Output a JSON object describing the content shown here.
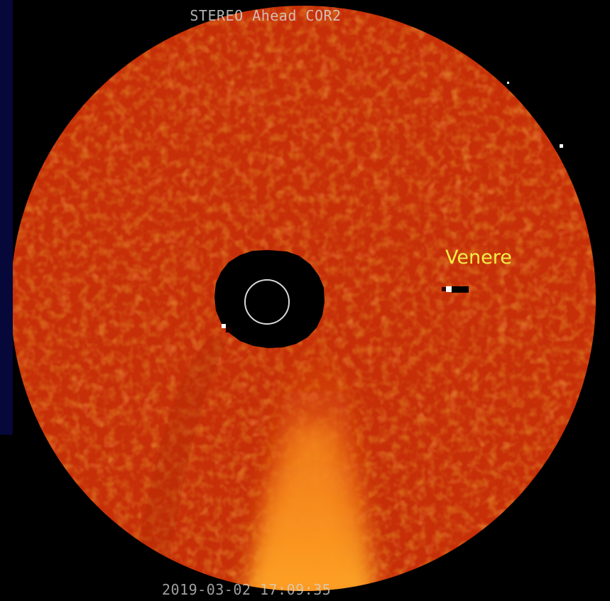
{
  "image": {
    "instrument_title": "STEREO Ahead COR2",
    "timestamp": "2019-03-02 17:09:35",
    "planet_label": "Venere",
    "colors": {
      "background": "#000000",
      "field": "#c72f08",
      "occulter": "#000000",
      "sun_outline": "#d9d9d9",
      "planet_label": "#f4ee44",
      "left_strip": "#06083a"
    }
  }
}
